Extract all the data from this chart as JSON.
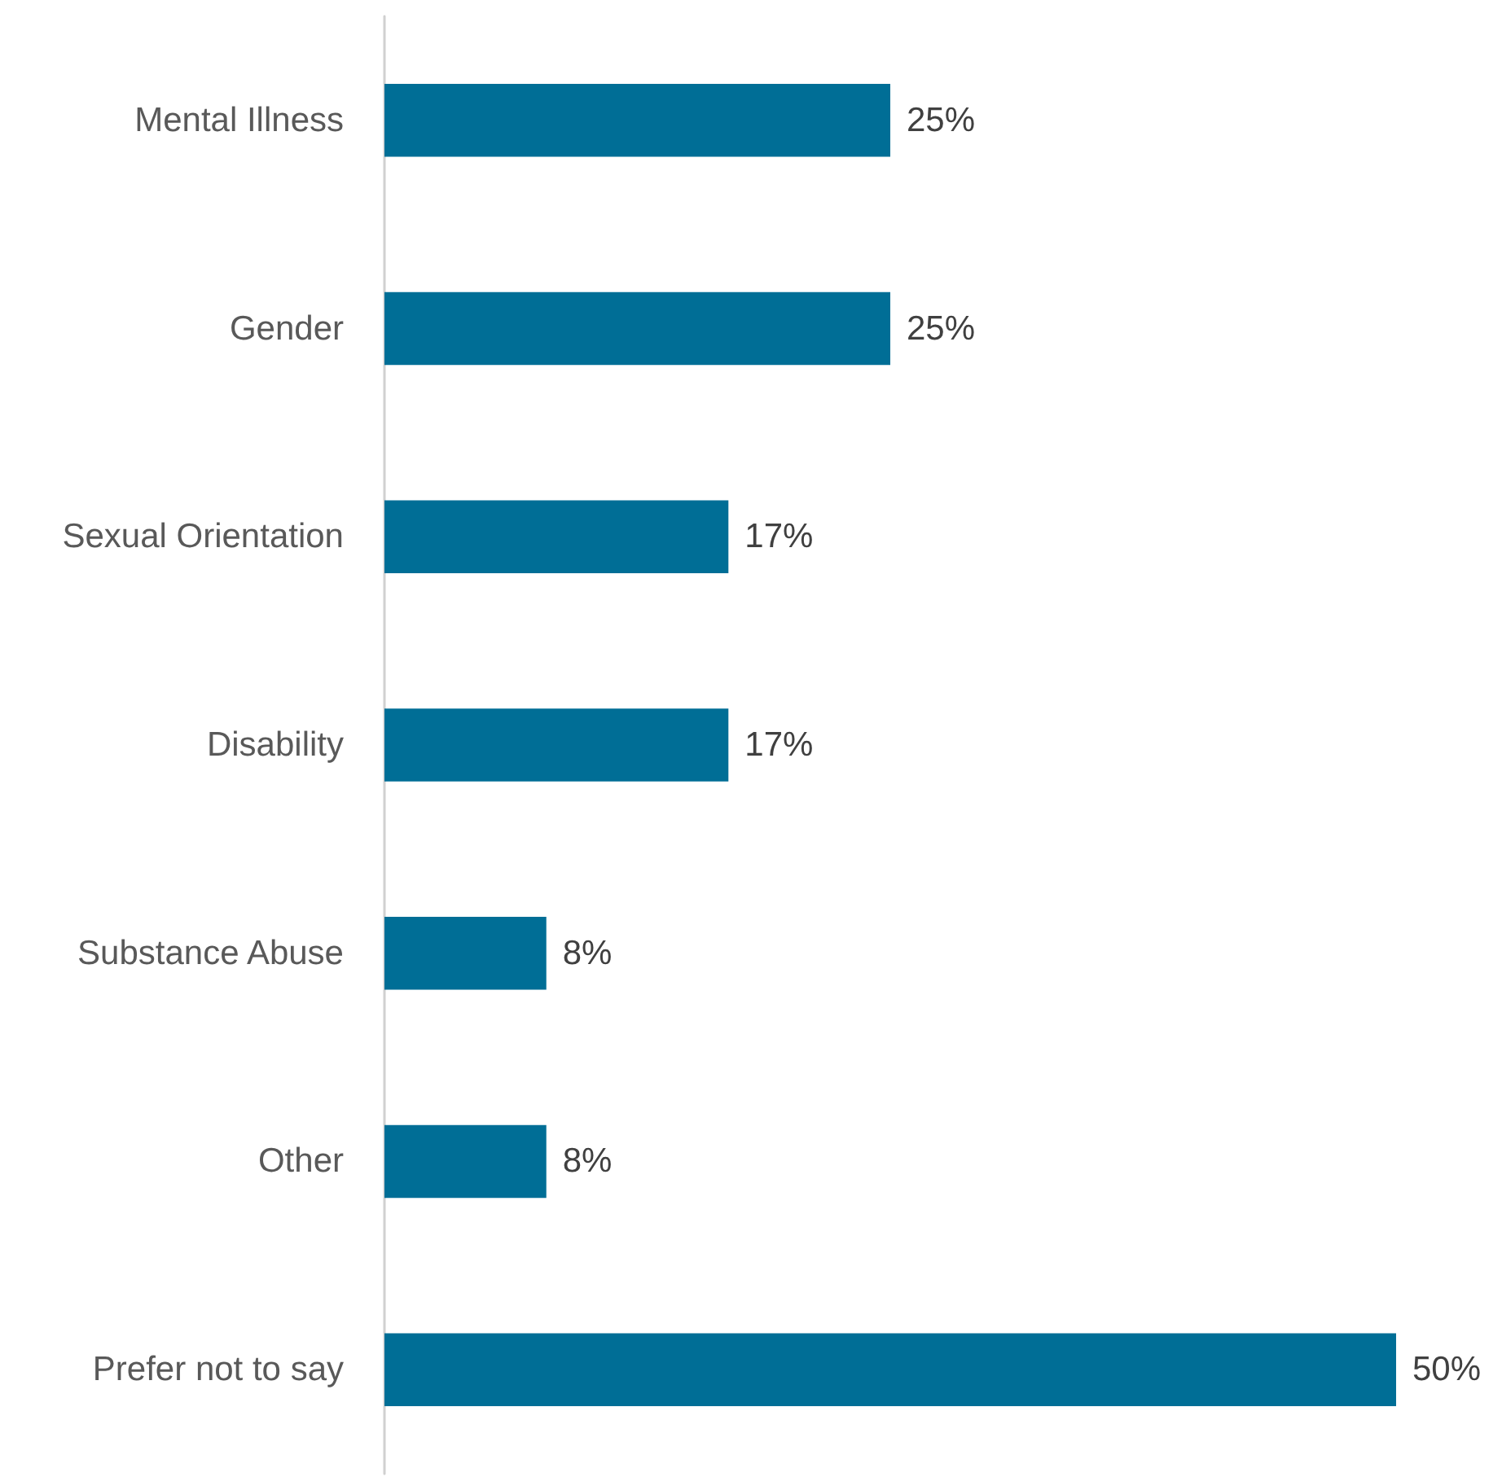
{
  "chart_data": {
    "type": "bar",
    "orientation": "horizontal",
    "categories": [
      "Mental Illness",
      "Gender",
      "Sexual Orientation",
      "Disability",
      "Substance Abuse",
      "Other",
      "Prefer not to say"
    ],
    "values": [
      25,
      25,
      17,
      17,
      8,
      8,
      50
    ],
    "value_labels": [
      "25%",
      "25%",
      "17%",
      "17%",
      "8%",
      "8%",
      "50%"
    ],
    "color": "#006e96"
  }
}
